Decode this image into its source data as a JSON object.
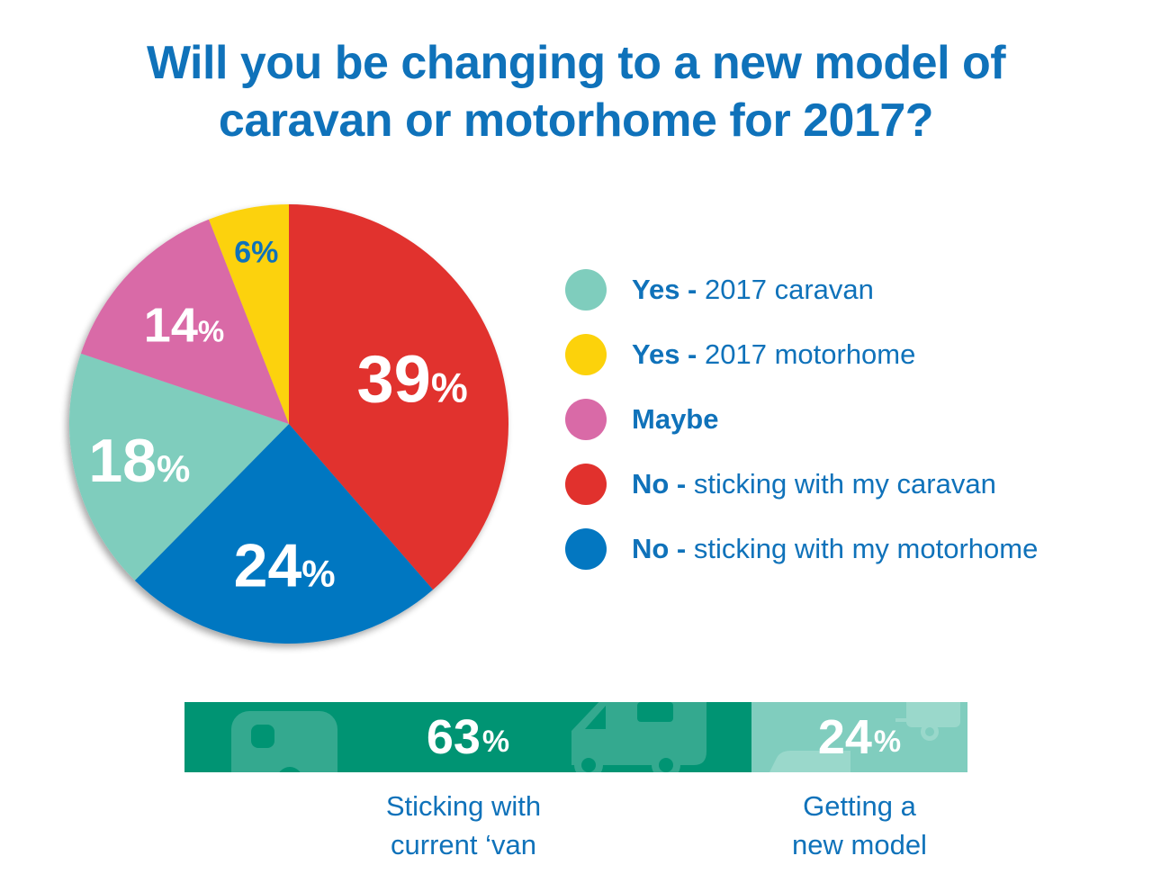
{
  "title": {
    "line1": "Will you be changing to a new model of",
    "line2": "caravan or motorhome for 2017?"
  },
  "colors": {
    "title_text": "#0f72ba",
    "caravan_yes": "#7fcdbd",
    "motorhome_yes": "#fcd20b",
    "maybe": "#d96aa7",
    "no_caravan": "#e1312d",
    "no_motorhome": "#0377c1",
    "bar_dark": "#009473",
    "bar_light": "#80cdbe",
    "bar_icon_dark": "#34a98f",
    "bar_icon_light": "#9ad8cb"
  },
  "legend": {
    "items": [
      {
        "bold": "Yes - ",
        "text": "2017 caravan",
        "color": "#7fcdbd"
      },
      {
        "bold": "Yes - ",
        "text": "2017 motorhome",
        "color": "#fcd20b"
      },
      {
        "bold": "Maybe",
        "text": "",
        "color": "#d96aa7"
      },
      {
        "bold": "No - ",
        "text": "sticking with my caravan",
        "color": "#e1312d"
      },
      {
        "bold": "No - ",
        "text": "sticking with my motorhome",
        "color": "#0377c1"
      }
    ]
  },
  "summary_bar": {
    "segments": [
      {
        "value": "63",
        "pct": "%",
        "caption_line1": "Sticking with",
        "caption_line2": "current ‘van",
        "color": "#009473"
      },
      {
        "value": "24",
        "pct": "%",
        "caption_line1": "Getting a",
        "caption_line2": "new model",
        "color": "#80cdbe"
      }
    ]
  },
  "chart_data": [
    {
      "type": "pie",
      "title": "Will you be changing to a new model of caravan or motorhome for 2017?",
      "categories": [
        "No - sticking with my caravan",
        "No - sticking with my motorhome",
        "Yes - 2017 caravan",
        "Maybe",
        "Yes - 2017 motorhome"
      ],
      "values": [
        39,
        24,
        18,
        14,
        6
      ],
      "labels": [
        "39%",
        "24%",
        "18%",
        "14%",
        "6%"
      ],
      "colors": [
        "#e1312d",
        "#0377c1",
        "#7fcdbd",
        "#d96aa7",
        "#fcd20b"
      ],
      "label_colors": [
        "#ffffff",
        "#ffffff",
        "#ffffff",
        "#ffffff",
        "#0f72ba"
      ],
      "start_angle_deg": 0,
      "direction": "clockwise",
      "legend_position": "right"
    },
    {
      "type": "bar",
      "orientation": "horizontal-stacked",
      "categories": [
        "Sticking with current ‘van",
        "Getting a new model"
      ],
      "values": [
        63,
        24
      ],
      "labels": [
        "63%",
        "24%"
      ]
    }
  ]
}
